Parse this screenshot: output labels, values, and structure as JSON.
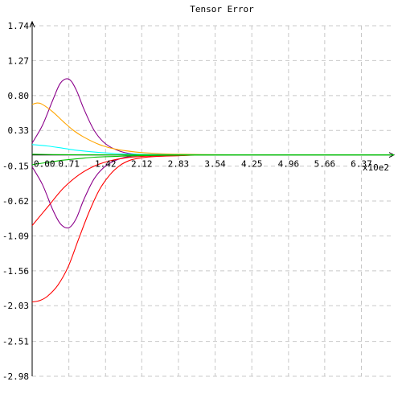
{
  "chart_data": {
    "type": "line",
    "title": "Tensor Error",
    "x_multiplier_label": "x10e2",
    "xlim": [
      0,
      7
    ],
    "ylim": [
      -2.98,
      1.74
    ],
    "x_ticks": [
      "0.00",
      "0.71",
      "1.42",
      "2.12",
      "2.83",
      "3.54",
      "4.25",
      "4.96",
      "5.66",
      "6.37"
    ],
    "y_ticks": [
      "1.74",
      "1.27",
      "0.80",
      "0.33",
      "-0.15",
      "-0.62",
      "-1.09",
      "-1.56",
      "-2.03",
      "-2.51",
      "-2.98"
    ],
    "grid": true,
    "axis_color": "#000000",
    "grid_color": "#c8c8c8",
    "series": [
      {
        "color": "#8b008b",
        "x": [
          0,
          0.2,
          0.4,
          0.55,
          0.71,
          0.85,
          1.0,
          1.2,
          1.42,
          1.7,
          2.0,
          2.4,
          2.83,
          3.3,
          3.54,
          4.5,
          5.5,
          7.0
        ],
        "y": [
          0.16,
          0.4,
          0.74,
          0.97,
          1.02,
          0.88,
          0.62,
          0.33,
          0.15,
          0.05,
          0.01,
          0.005,
          0.003,
          0.001,
          0,
          0,
          0,
          0
        ]
      },
      {
        "color": "#8b008b",
        "x": [
          0,
          0.2,
          0.4,
          0.55,
          0.71,
          0.85,
          1.0,
          1.2,
          1.42,
          1.7,
          2.0,
          2.4,
          2.83,
          3.3,
          3.54,
          4.5,
          5.5,
          7.0
        ],
        "y": [
          -0.16,
          -0.4,
          -0.74,
          -0.93,
          -0.98,
          -0.86,
          -0.6,
          -0.32,
          -0.15,
          -0.05,
          -0.01,
          -0.005,
          -0.003,
          -0.001,
          0,
          0,
          0,
          0
        ]
      },
      {
        "color": "#ffa500",
        "x": [
          0,
          0.1,
          0.2,
          0.4,
          0.6,
          0.8,
          1.0,
          1.3,
          1.6,
          2.0,
          2.4,
          2.83,
          3.3,
          4.0,
          5.0,
          7.0
        ],
        "y": [
          0.68,
          0.7,
          0.68,
          0.58,
          0.45,
          0.33,
          0.24,
          0.14,
          0.08,
          0.04,
          0.02,
          0.01,
          0.005,
          0.002,
          0,
          0
        ]
      },
      {
        "color": "#ff0000",
        "x": [
          0,
          0.3,
          0.6,
          0.9,
          1.2,
          1.5,
          1.8,
          2.1,
          2.4,
          2.83,
          3.3,
          4.0,
          5.0,
          7.0
        ],
        "y": [
          -0.95,
          -0.7,
          -0.45,
          -0.27,
          -0.15,
          -0.08,
          -0.04,
          -0.02,
          -0.01,
          -0.005,
          0,
          0,
          0,
          0
        ]
      },
      {
        "color": "#ff0000",
        "x": [
          0,
          0.15,
          0.3,
          0.5,
          0.7,
          0.9,
          1.1,
          1.3,
          1.5,
          1.7,
          1.9,
          2.1,
          2.4,
          2.83,
          3.3,
          4.0,
          5.0,
          7.0
        ],
        "y": [
          -1.98,
          -1.96,
          -1.9,
          -1.75,
          -1.5,
          -1.13,
          -0.77,
          -0.47,
          -0.27,
          -0.14,
          -0.07,
          -0.04,
          -0.02,
          -0.01,
          0,
          0,
          0,
          0
        ]
      },
      {
        "color": "#00ffff",
        "x": [
          0,
          0.3,
          0.6,
          0.9,
          1.2,
          1.6,
          2.0,
          2.5,
          3.0,
          4.0,
          5.0,
          7.0
        ],
        "y": [
          0.14,
          0.12,
          0.09,
          0.06,
          0.04,
          0.02,
          0.01,
          0.005,
          0.002,
          0,
          0,
          0
        ]
      },
      {
        "color": "#00c000",
        "x": [
          0,
          0.4,
          0.8,
          1.2,
          1.6,
          2.0,
          2.5,
          3.0,
          4.0,
          5.0,
          7.0
        ],
        "y": [
          0.01,
          0.005,
          0.003,
          0.002,
          0.001,
          0,
          0,
          0,
          0,
          0,
          0
        ]
      },
      {
        "color": "#00c000",
        "x": [
          0,
          0.3,
          0.6,
          0.9,
          1.2,
          1.6,
          2.0,
          2.5,
          3.0,
          4.0,
          5.0,
          7.0
        ],
        "y": [
          -0.13,
          -0.1,
          -0.07,
          -0.05,
          -0.03,
          -0.02,
          -0.01,
          -0.005,
          -0.002,
          0,
          0,
          0
        ]
      }
    ]
  }
}
